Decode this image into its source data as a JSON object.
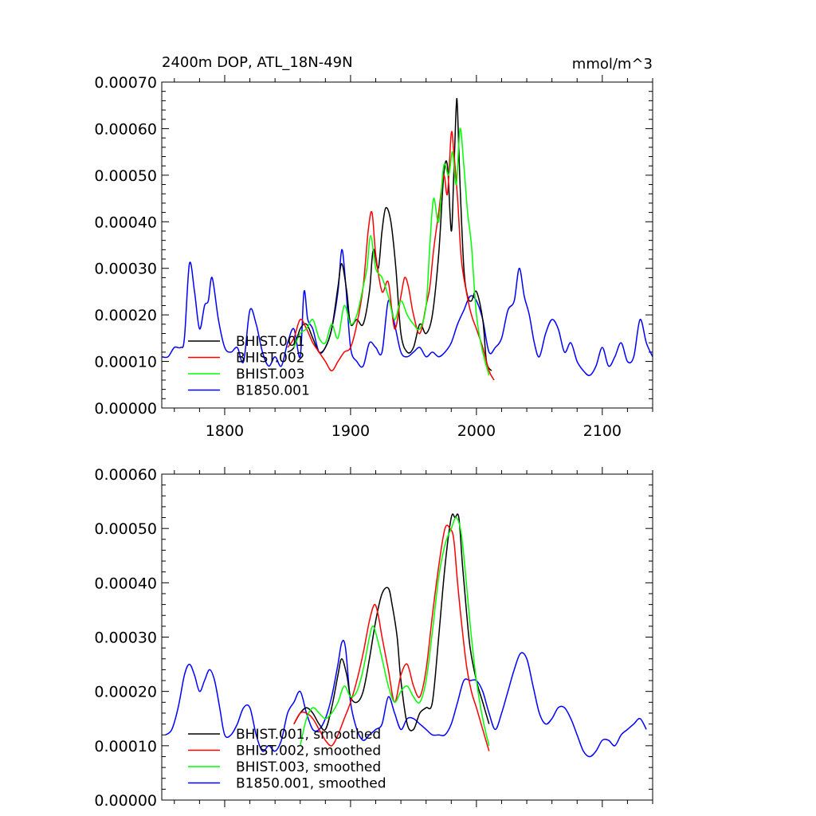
{
  "chart_data": [
    {
      "type": "line",
      "title": "2400m DOP, ATL_18N-49N",
      "units": "mmol/m^3",
      "xlabel": "",
      "ylabel": "",
      "xlim": [
        1750,
        2140
      ],
      "ylim": [
        0,
        0.0007
      ],
      "xticks": [
        1800,
        1900,
        2000,
        2100
      ],
      "xtick_labels": [
        "1800",
        "1900",
        "2000",
        "2100"
      ],
      "yticks": [
        0,
        0.0001,
        0.0002,
        0.0003,
        0.0004,
        0.0005,
        0.0006,
        0.0007
      ],
      "ytick_labels": [
        "0.00000",
        "0.00010",
        "0.00020",
        "0.00030",
        "0.00040",
        "0.00050",
        "0.00060",
        "0.00070"
      ],
      "legend_position": "bottom-left",
      "series": [
        {
          "name": "BHIST.001",
          "color": "#000000",
          "x": [
            1850,
            1855,
            1860,
            1865,
            1870,
            1875,
            1880,
            1885,
            1890,
            1893,
            1897,
            1900,
            1905,
            1910,
            1915,
            1918,
            1922,
            1925,
            1928,
            1932,
            1936,
            1940,
            1945,
            1950,
            1955,
            1960,
            1965,
            1970,
            1974,
            1977,
            1980,
            1982,
            1984,
            1985,
            1987,
            1990,
            1993,
            1996,
            2000,
            2005,
            2008,
            2012
          ],
          "y": [
            0.00012,
            0.00013,
            0.00017,
            0.00018,
            0.00015,
            0.00012,
            0.00013,
            0.00017,
            0.00026,
            0.00031,
            0.00025,
            0.00018,
            0.00019,
            0.00018,
            0.00025,
            0.00034,
            0.0003,
            0.00038,
            0.00043,
            0.0004,
            0.0003,
            0.00016,
            0.00012,
            0.00013,
            0.00018,
            0.00016,
            0.0002,
            0.00033,
            0.0005,
            0.00052,
            0.00038,
            0.0005,
            0.00065,
            0.00064,
            0.00048,
            0.0003,
            0.00024,
            0.00023,
            0.00025,
            0.00019,
            0.0001,
            8e-05
          ]
        },
        {
          "name": "BHIST.002",
          "color": "#ff0000",
          "x": [
            1850,
            1855,
            1860,
            1865,
            1870,
            1875,
            1880,
            1885,
            1890,
            1895,
            1900,
            1905,
            1910,
            1914,
            1917,
            1920,
            1925,
            1930,
            1935,
            1940,
            1943,
            1946,
            1950,
            1955,
            1960,
            1963,
            1966,
            1970,
            1974,
            1977,
            1980,
            1982,
            1985,
            1988,
            1992,
            1996,
            2000,
            2005,
            2010,
            2014
          ],
          "y": [
            0.00013,
            0.00015,
            0.00019,
            0.00017,
            0.00014,
            0.00012,
            0.0001,
            8e-05,
            0.0001,
            0.00012,
            0.00013,
            0.00018,
            0.00026,
            0.00038,
            0.00042,
            0.00033,
            0.00025,
            0.00027,
            0.00017,
            0.00024,
            0.00028,
            0.00026,
            0.0002,
            0.00016,
            0.00022,
            0.00026,
            0.00034,
            0.00042,
            0.0005,
            0.00046,
            0.00059,
            0.00055,
            0.00045,
            0.00032,
            0.00025,
            0.0002,
            0.00017,
            0.00013,
            8e-05,
            6e-05
          ]
        },
        {
          "name": "BHIST.003",
          "color": "#00ff00",
          "x": [
            1855,
            1860,
            1865,
            1870,
            1875,
            1880,
            1885,
            1890,
            1895,
            1900,
            1905,
            1910,
            1913,
            1916,
            1920,
            1925,
            1930,
            1935,
            1940,
            1945,
            1950,
            1955,
            1960,
            1963,
            1966,
            1970,
            1974,
            1978,
            1981,
            1984,
            1987,
            1990,
            1993,
            1996,
            2000,
            2005,
            2010
          ],
          "y": [
            0.00013,
            0.00016,
            0.00017,
            0.00019,
            0.00015,
            0.00014,
            0.00018,
            0.00015,
            0.00022,
            0.00018,
            0.0002,
            0.00026,
            0.0003,
            0.00037,
            0.0003,
            0.00028,
            0.00024,
            0.00019,
            0.00023,
            0.0002,
            0.00018,
            0.00017,
            0.00022,
            0.00035,
            0.00045,
            0.0004,
            0.00052,
            0.0005,
            0.00055,
            0.00048,
            0.0006,
            0.00052,
            0.00042,
            0.00035,
            0.0002,
            0.00012,
            7e-05
          ]
        },
        {
          "name": "B1850.001",
          "color": "#0000ff",
          "x": [
            1750,
            1755,
            1760,
            1765,
            1768,
            1772,
            1776,
            1780,
            1784,
            1787,
            1790,
            1795,
            1800,
            1805,
            1810,
            1815,
            1820,
            1825,
            1830,
            1835,
            1840,
            1845,
            1850,
            1855,
            1860,
            1863,
            1866,
            1870,
            1875,
            1880,
            1885,
            1890,
            1893,
            1896,
            1900,
            1905,
            1910,
            1915,
            1920,
            1925,
            1930,
            1935,
            1940,
            1945,
            1950,
            1955,
            1960,
            1965,
            1970,
            1975,
            1980,
            1985,
            1990,
            1995,
            2000,
            2005,
            2010,
            2015,
            2020,
            2025,
            2030,
            2034,
            2038,
            2042,
            2046,
            2050,
            2055,
            2060,
            2065,
            2070,
            2075,
            2080,
            2085,
            2090,
            2095,
            2100,
            2105,
            2110,
            2115,
            2120,
            2125,
            2130,
            2135,
            2140
          ],
          "y": [
            0.00011,
            0.00011,
            0.00013,
            0.00013,
            0.00015,
            0.00031,
            0.00025,
            0.00017,
            0.00022,
            0.00023,
            0.00028,
            0.00019,
            0.00013,
            0.00012,
            0.00013,
            0.0001,
            0.00021,
            0.00018,
            0.00012,
            9e-05,
            0.00011,
            9e-05,
            0.00014,
            0.00017,
            0.00011,
            0.00025,
            0.00019,
            0.00017,
            0.00012,
            0.00013,
            0.00017,
            0.00025,
            0.00034,
            0.00027,
            0.00013,
            0.0001,
            9e-05,
            0.00014,
            0.00013,
            0.00012,
            0.00023,
            0.00018,
            0.00012,
            0.00011,
            0.00012,
            0.00013,
            0.00011,
            0.00012,
            0.00011,
            0.00012,
            0.00014,
            0.00018,
            0.00021,
            0.00024,
            0.00023,
            0.00019,
            0.00012,
            0.00013,
            0.00015,
            0.00021,
            0.00023,
            0.0003,
            0.00024,
            0.0002,
            0.00014,
            0.00011,
            0.00016,
            0.00019,
            0.00017,
            0.00012,
            0.00014,
            0.0001,
            8e-05,
            7e-05,
            9e-05,
            0.00013,
            9e-05,
            0.00011,
            0.00014,
            0.0001,
            0.00011,
            0.00019,
            0.00014,
            0.00011
          ]
        }
      ]
    },
    {
      "type": "line",
      "title": "",
      "xlabel": "",
      "ylabel": "",
      "xlim": [
        1750,
        2140
      ],
      "ylim": [
        0,
        0.0006
      ],
      "xticks": [
        1800,
        1900,
        2000,
        2100
      ],
      "yticks": [
        0,
        0.0001,
        0.0002,
        0.0003,
        0.0004,
        0.0005,
        0.0006
      ],
      "ytick_labels": [
        "0.00000",
        "0.00010",
        "0.00020",
        "0.00030",
        "0.00040",
        "0.00050",
        "0.00060"
      ],
      "legend_position": "bottom-left",
      "series": [
        {
          "name": "BHIST.001, smoothed",
          "color": "#000000",
          "x": [
            1855,
            1860,
            1865,
            1870,
            1875,
            1880,
            1885,
            1890,
            1893,
            1897,
            1900,
            1905,
            1910,
            1915,
            1920,
            1925,
            1930,
            1933,
            1937,
            1940,
            1945,
            1950,
            1955,
            1960,
            1965,
            1970,
            1975,
            1980,
            1983,
            1986,
            1989,
            1992,
            1995,
            2000,
            2005,
            2010
          ],
          "y": [
            0.00014,
            0.00016,
            0.00017,
            0.00016,
            0.00014,
            0.00013,
            0.00017,
            0.00023,
            0.00026,
            0.00023,
            0.00019,
            0.00018,
            0.0002,
            0.00026,
            0.00033,
            0.00038,
            0.00039,
            0.00036,
            0.0003,
            0.00022,
            0.00014,
            0.00013,
            0.00016,
            0.00017,
            0.00018,
            0.0003,
            0.00043,
            0.00052,
            0.00052,
            0.00052,
            0.00043,
            0.00035,
            0.00028,
            0.00022,
            0.00018,
            0.00014
          ]
        },
        {
          "name": "BHIST.002, smoothed",
          "color": "#ff0000",
          "x": [
            1855,
            1860,
            1865,
            1870,
            1875,
            1880,
            1885,
            1890,
            1895,
            1900,
            1905,
            1910,
            1915,
            1919,
            1922,
            1925,
            1930,
            1935,
            1940,
            1945,
            1950,
            1955,
            1960,
            1965,
            1970,
            1975,
            1979,
            1982,
            1985,
            1988,
            1992,
            1996,
            2000,
            2005,
            2010
          ],
          "y": [
            0.00014,
            0.00016,
            0.00016,
            0.00015,
            0.00013,
            0.00011,
            0.0001,
            0.00012,
            0.00015,
            0.00018,
            0.00022,
            0.00027,
            0.00033,
            0.00036,
            0.00034,
            0.0003,
            0.00024,
            0.00018,
            0.00023,
            0.00025,
            0.00021,
            0.00019,
            0.00024,
            0.00034,
            0.00043,
            0.0005,
            0.0005,
            0.00048,
            0.0004,
            0.00033,
            0.00025,
            0.0002,
            0.00017,
            0.00013,
            9e-05
          ]
        },
        {
          "name": "BHIST.003, smoothed",
          "color": "#00ff00",
          "x": [
            1860,
            1865,
            1870,
            1875,
            1880,
            1885,
            1890,
            1895,
            1900,
            1905,
            1910,
            1915,
            1918,
            1922,
            1926,
            1930,
            1935,
            1940,
            1945,
            1950,
            1955,
            1960,
            1965,
            1970,
            1975,
            1980,
            1984,
            1988,
            1992,
            1996,
            2000,
            2005,
            2010
          ],
          "y": [
            0.0001,
            0.00015,
            0.00017,
            0.00016,
            0.00015,
            0.00016,
            0.00018,
            0.00021,
            0.00019,
            0.0002,
            0.00024,
            0.0003,
            0.00032,
            0.00029,
            0.00025,
            0.00021,
            0.00018,
            0.0002,
            0.00021,
            0.00019,
            0.00018,
            0.00022,
            0.00031,
            0.00041,
            0.00047,
            0.0005,
            0.00052,
            0.00049,
            0.0004,
            0.0003,
            0.00022,
            0.00015,
            0.0001
          ]
        },
        {
          "name": "B1850.001, smoothed",
          "color": "#0000ff",
          "x": [
            1753,
            1758,
            1763,
            1768,
            1772,
            1776,
            1780,
            1784,
            1788,
            1792,
            1796,
            1800,
            1805,
            1810,
            1815,
            1820,
            1825,
            1830,
            1835,
            1840,
            1845,
            1850,
            1855,
            1860,
            1865,
            1870,
            1875,
            1880,
            1885,
            1890,
            1893,
            1896,
            1900,
            1905,
            1910,
            1915,
            1920,
            1925,
            1930,
            1935,
            1940,
            1945,
            1950,
            1955,
            1960,
            1965,
            1970,
            1975,
            1980,
            1985,
            1990,
            1995,
            2000,
            2005,
            2010,
            2015,
            2020,
            2025,
            2030,
            2035,
            2040,
            2045,
            2050,
            2055,
            2060,
            2065,
            2070,
            2075,
            2080,
            2085,
            2090,
            2095,
            2100,
            2105,
            2110,
            2115,
            2120,
            2125,
            2130,
            2135
          ],
          "y": [
            0.00012,
            0.00013,
            0.00017,
            0.00023,
            0.00025,
            0.00023,
            0.0002,
            0.00022,
            0.00024,
            0.00022,
            0.00017,
            0.00012,
            0.00012,
            0.00014,
            0.00017,
            0.00017,
            0.00012,
            9e-05,
            0.0001,
            9e-05,
            0.00011,
            0.00016,
            0.00018,
            0.0002,
            0.00016,
            0.00013,
            0.00013,
            0.00015,
            0.00019,
            0.00025,
            0.00029,
            0.00028,
            0.00018,
            0.00013,
            0.00011,
            0.00012,
            0.00013,
            0.00014,
            0.00019,
            0.00016,
            0.00013,
            0.00015,
            0.00015,
            0.00014,
            0.00013,
            0.00012,
            0.00012,
            0.00012,
            0.00014,
            0.00018,
            0.00022,
            0.00022,
            0.00022,
            0.0002,
            0.00016,
            0.00013,
            0.00016,
            0.0002,
            0.00024,
            0.00027,
            0.00026,
            0.00021,
            0.00016,
            0.00014,
            0.00015,
            0.00017,
            0.00017,
            0.00015,
            0.00012,
            9e-05,
            8e-05,
            9e-05,
            0.00011,
            0.00011,
            0.0001,
            0.00012,
            0.00013,
            0.00014,
            0.00015,
            0.00013
          ]
        }
      ]
    }
  ]
}
